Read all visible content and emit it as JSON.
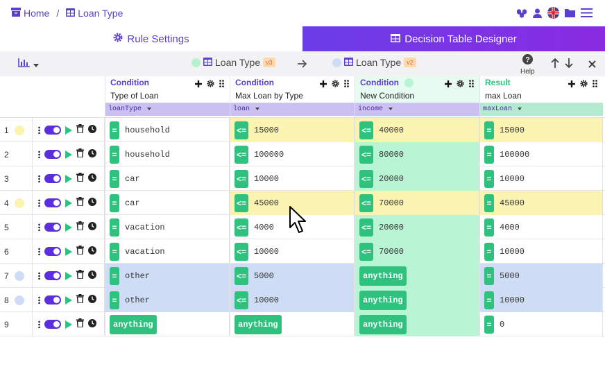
{
  "breadcrumb": {
    "home": "Home",
    "separator": "/",
    "current": "Loan Type"
  },
  "tabs": {
    "rule_settings": "Rule Settings",
    "designer": "Decision Table Designer"
  },
  "toolbar": {
    "left_table": {
      "name": "Loan Type",
      "version": "v3",
      "dot_color": "#b6f2cf"
    },
    "right_table": {
      "name": "Loan Type",
      "version": "v2",
      "dot_color": "#cfdcf5"
    },
    "help_label": "Help"
  },
  "columns": [
    {
      "kind": "Condition",
      "name": "Type of Loan",
      "field": "loanType",
      "kind_color": "#5b3fd1",
      "field_bg": "#cbc0f2"
    },
    {
      "kind": "Condition",
      "name": "Max Loan by Type",
      "field": "loan",
      "kind_color": "#5b3fd1",
      "field_bg": "#cbc0f2"
    },
    {
      "kind": "Condition",
      "name": "New Condition",
      "field": "income",
      "kind_color": "#5b3fd1",
      "field_bg": "#cbc0f2"
    },
    {
      "kind": "Result",
      "name": "max Loan",
      "field": "maxLoan",
      "kind_color": "#2ec27e",
      "field_bg": "#b3ead0"
    }
  ],
  "rows": [
    {
      "num": "1",
      "dot": "#fbf3b0",
      "bg": "#fbf3b0",
      "c1": {
        "op": "=",
        "v": "household"
      },
      "c2": {
        "op": "<=",
        "v": "15000"
      },
      "c3": {
        "op": "<=",
        "v": "40000"
      },
      "c4": {
        "op": "=",
        "v": "15000"
      }
    },
    {
      "num": "2",
      "dot": "",
      "bg": "",
      "c1": {
        "op": "=",
        "v": "household"
      },
      "c2": {
        "op": "<=",
        "v": "100000"
      },
      "c3": {
        "op": "<=",
        "v": "80000"
      },
      "c4": {
        "op": "=",
        "v": "100000"
      }
    },
    {
      "num": "3",
      "dot": "",
      "bg": "",
      "c1": {
        "op": "=",
        "v": "car"
      },
      "c2": {
        "op": "<=",
        "v": "10000"
      },
      "c3": {
        "op": "<=",
        "v": "20000"
      },
      "c4": {
        "op": "=",
        "v": "10000"
      }
    },
    {
      "num": "4",
      "dot": "#fbf3b0",
      "bg": "#fbf3b0",
      "c1": {
        "op": "=",
        "v": "car"
      },
      "c2": {
        "op": "<=",
        "v": "45000"
      },
      "c3": {
        "op": "<=",
        "v": "70000"
      },
      "c4": {
        "op": "=",
        "v": "45000"
      }
    },
    {
      "num": "5",
      "dot": "",
      "bg": "",
      "c1": {
        "op": "=",
        "v": "vacation"
      },
      "c2": {
        "op": "<=",
        "v": "4000"
      },
      "c3": {
        "op": "<=",
        "v": "20000"
      },
      "c4": {
        "op": "=",
        "v": "4000"
      }
    },
    {
      "num": "6",
      "dot": "",
      "bg": "",
      "c1": {
        "op": "=",
        "v": "vacation"
      },
      "c2": {
        "op": "<=",
        "v": "10000"
      },
      "c3": {
        "op": "<=",
        "v": "70000"
      },
      "c4": {
        "op": "=",
        "v": "10000"
      }
    },
    {
      "num": "7",
      "dot": "#cfdcf5",
      "bg": "#cfdcf5",
      "c1": {
        "op": "=",
        "v": "other"
      },
      "c2": {
        "op": "<=",
        "v": "5000"
      },
      "c3": {
        "any": "anything"
      },
      "c4": {
        "op": "=",
        "v": "5000"
      }
    },
    {
      "num": "8",
      "dot": "#cfdcf5",
      "bg": "#cfdcf5",
      "c1": {
        "op": "=",
        "v": "other"
      },
      "c2": {
        "op": "<=",
        "v": "10000"
      },
      "c3": {
        "any": "anything"
      },
      "c4": {
        "op": "=",
        "v": "10000"
      }
    },
    {
      "num": "9",
      "dot": "",
      "bg": "",
      "c1": {
        "any": "anything"
      },
      "c2": {
        "any": "anything"
      },
      "c3": {
        "any": "anything"
      },
      "c4": {
        "op": "=",
        "v": "0"
      }
    }
  ],
  "colors": {
    "accent": "#5b3fd1",
    "green": "#2ec27e",
    "income_col_bg": "#b9f4d4"
  }
}
